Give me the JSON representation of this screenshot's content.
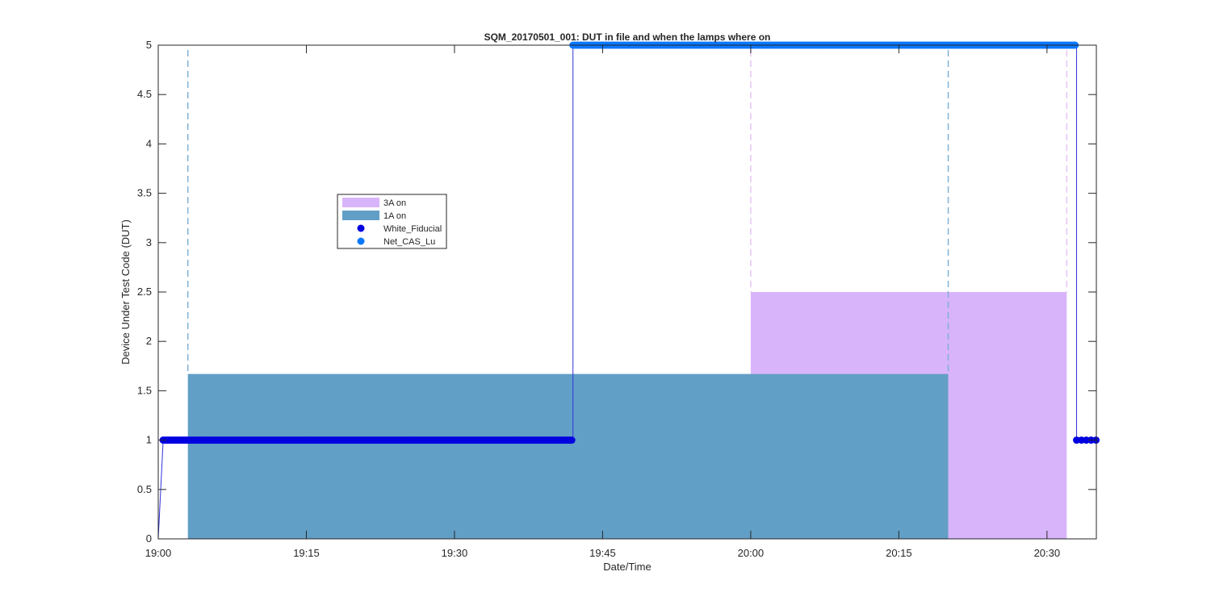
{
  "chart_data": {
    "type": "area",
    "title": "SQM_20170501_001: DUT in file and when the lamps where on",
    "xlabel": "Date/Time",
    "ylabel": "Device Under Test Code (DUT)",
    "xlim": [
      "19:00",
      "20:35"
    ],
    "ylim": [
      0,
      5
    ],
    "x_ticks": [
      "19:00",
      "19:15",
      "19:30",
      "19:45",
      "20:00",
      "20:15",
      "20:30"
    ],
    "y_ticks": [
      "0",
      "0.5",
      "1",
      "1.5",
      "2",
      "2.5",
      "3",
      "3.5",
      "4",
      "4.5",
      "5"
    ],
    "grid": false,
    "legend_position": "upper-left-center",
    "lamp_periods": [
      {
        "name": "3A on",
        "color": "#d8b4fa",
        "start": "20:00",
        "end": "20:32",
        "level": 2.5
      },
      {
        "name": "1A on",
        "color": "#629fc6",
        "start": "19:03",
        "end": "20:20",
        "level": 1.67
      }
    ],
    "series": [
      {
        "name": "White_Fiducial",
        "color": "#0000e0",
        "marker": "dot",
        "start": "19:00.5",
        "end": "19:42",
        "value": 1
      },
      {
        "name": "Net_CAS_Lu",
        "color": "#0a78ff",
        "marker": "dot",
        "start": "19:42",
        "end": "20:33",
        "value": 5
      },
      {
        "name": "White_Fiducial",
        "color": "#0000e0",
        "marker": "dot",
        "start": "20:33",
        "end": "20:35",
        "value": 1
      }
    ],
    "line_trace": [
      [
        "19:00",
        0
      ],
      [
        "19:00.5",
        1
      ],
      [
        "19:42",
        1
      ],
      [
        "19:42",
        5
      ],
      [
        "20:33",
        5
      ],
      [
        "20:33",
        1
      ],
      [
        "20:35",
        1
      ]
    ]
  }
}
